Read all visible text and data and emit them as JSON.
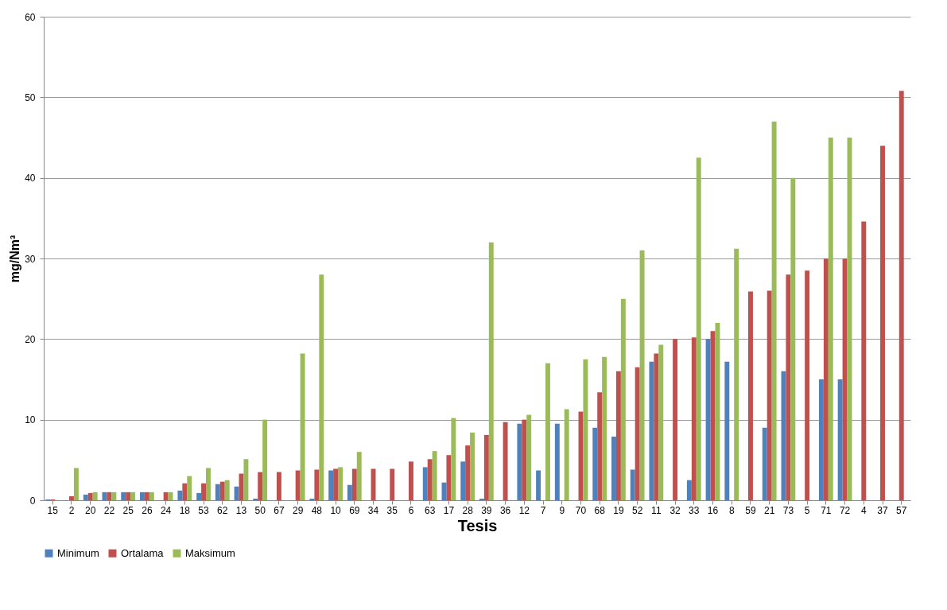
{
  "chart_data": {
    "type": "bar",
    "xlabel": "Tesis",
    "ylabel": "mg/Nm³",
    "categories": [
      "15",
      "2",
      "20",
      "22",
      "25",
      "26",
      "24",
      "18",
      "53",
      "62",
      "13",
      "50",
      "67",
      "29",
      "48",
      "10",
      "69",
      "34",
      "35",
      "6",
      "63",
      "17",
      "28",
      "39",
      "36",
      "12",
      "7",
      "9",
      "70",
      "68",
      "19",
      "52",
      "11",
      "32",
      "33",
      "16",
      "8",
      "59",
      "21",
      "73",
      "5",
      "71",
      "72",
      "4",
      "37",
      "57"
    ],
    "series": [
      {
        "name": "Minimum",
        "color": "#4f81bd",
        "values": [
          0.1,
          null,
          0.7,
          1,
          1,
          1,
          null,
          1.2,
          0.9,
          2,
          1.7,
          0.2,
          null,
          null,
          0.2,
          3.7,
          1.9,
          null,
          null,
          null,
          4.1,
          2.2,
          4.8,
          0.2,
          null,
          9.5,
          3.7,
          9.5,
          null,
          9,
          7.9,
          3.8,
          17.2,
          null,
          2.5,
          20,
          17.2,
          null,
          9,
          16,
          null,
          15,
          15,
          null,
          null,
          null
        ]
      },
      {
        "name": "Ortalama",
        "color": "#c0504d",
        "values": [
          0.1,
          0.5,
          0.9,
          1,
          1,
          1,
          1,
          2.1,
          2.1,
          2.3,
          3.3,
          3.5,
          3.5,
          3.7,
          3.8,
          3.9,
          3.9,
          3.9,
          3.9,
          4.8,
          5.1,
          5.6,
          6.8,
          8.1,
          9.7,
          10,
          null,
          null,
          11,
          13.4,
          16,
          16.5,
          18.2,
          20,
          20.2,
          21,
          null,
          25.9,
          26,
          28,
          28.5,
          30,
          30,
          34.6,
          44,
          50.8
        ]
      },
      {
        "name": "Maksimum",
        "color": "#9bbb59",
        "values": [
          null,
          4,
          1,
          1,
          1,
          1,
          1,
          3,
          4,
          2.5,
          5.1,
          10,
          null,
          18.2,
          28,
          4.1,
          6,
          null,
          null,
          null,
          6.1,
          10.2,
          8.4,
          32,
          null,
          10.6,
          17,
          11.3,
          17.5,
          17.8,
          25,
          31,
          19.3,
          null,
          42.5,
          22,
          31.2,
          null,
          47,
          40,
          null,
          45,
          45,
          null,
          null,
          null
        ]
      }
    ],
    "ylim": [
      0,
      60
    ],
    "yticks": [
      0,
      10,
      20,
      30,
      40,
      50,
      60
    ],
    "grid": "y",
    "legend": "bottom"
  }
}
